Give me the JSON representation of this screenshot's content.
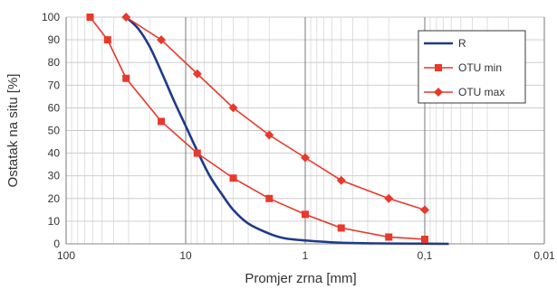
{
  "chart_data": {
    "type": "line",
    "title": "",
    "xlabel": "Promjer zrna [mm]",
    "ylabel": "Ostatak na situ [%]",
    "x_scale": "log",
    "x_reversed": true,
    "xlim": [
      100,
      0.01
    ],
    "ylim": [
      0,
      100
    ],
    "x_ticks": [
      100,
      10,
      1,
      0.1,
      0.01
    ],
    "x_tick_labels": [
      "100",
      "10",
      "1",
      "0,1",
      "0,01"
    ],
    "y_ticks": [
      0,
      10,
      20,
      30,
      40,
      50,
      60,
      70,
      80,
      90,
      100
    ],
    "y_tick_labels": [
      "0",
      "10",
      "20",
      "30",
      "40",
      "50",
      "60",
      "70",
      "80",
      "90",
      "100"
    ],
    "grid": true,
    "legend_position": "top-right",
    "series": [
      {
        "name": "R",
        "marker": "none",
        "color": "#1f3a8a",
        "smooth": true,
        "x": [
          31.5,
          25,
          20,
          16,
          12.5,
          10,
          8,
          6.3,
          5,
          4,
          3,
          2,
          1.5,
          1,
          0.5,
          0.25,
          0.125,
          0.063
        ],
        "y": [
          100,
          95,
          87,
          76,
          63,
          52,
          41,
          30,
          22,
          15,
          9,
          4.5,
          2.5,
          1.5,
          0.5,
          0.2,
          0.1,
          0
        ]
      },
      {
        "name": "OTU min",
        "marker": "square",
        "color": "#e8392b",
        "x": [
          63,
          45,
          31.5,
          16,
          8,
          4,
          2,
          1,
          0.5,
          0.2,
          0.1
        ],
        "y": [
          100,
          90,
          73,
          54,
          40,
          29,
          20,
          13,
          7,
          3,
          2
        ]
      },
      {
        "name": "OTU max",
        "marker": "diamond",
        "color": "#e8392b",
        "x": [
          31.5,
          16,
          8,
          4,
          2,
          1,
          0.5,
          0.2,
          0.1
        ],
        "y": [
          100,
          90,
          75,
          60,
          48,
          38,
          28,
          20,
          15
        ]
      }
    ]
  }
}
